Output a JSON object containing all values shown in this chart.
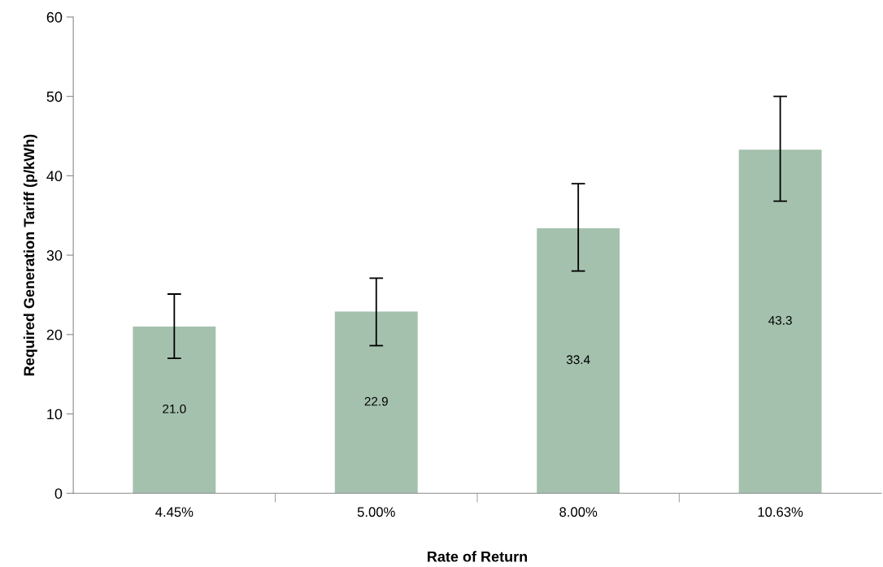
{
  "chart_data": {
    "type": "bar",
    "xlabel": "Rate of Return",
    "ylabel": "Required Generation Tariff (p/kWh)",
    "categories": [
      "4.45%",
      "5.00%",
      "8.00%",
      "10.63%"
    ],
    "values": [
      21.0,
      22.9,
      33.4,
      43.3
    ],
    "errors": [
      [
        17.0,
        25.1
      ],
      [
        18.6,
        27.1
      ],
      [
        28.0,
        39.0
      ],
      [
        36.8,
        50.0
      ]
    ],
    "color": "#a4c1ad",
    "ylim": [
      0,
      60
    ],
    "yticks": [
      0,
      10,
      20,
      30,
      40,
      50,
      60
    ],
    "value_labels": [
      "21.0",
      "22.9",
      "33.4",
      "43.3"
    ],
    "grid": false,
    "legend": false
  }
}
